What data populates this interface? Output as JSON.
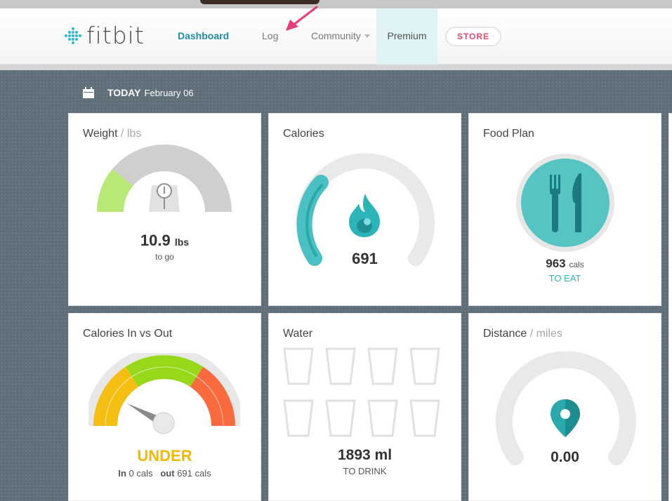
{
  "header": {
    "logo_text": "fitbit",
    "nav": {
      "dashboard": "Dashboard",
      "log": "Log",
      "community": "Community",
      "premium": "Premium",
      "store": "STORE"
    }
  },
  "date_bar": {
    "today_label": "TODAY",
    "date": "February 06"
  },
  "tiles": {
    "weight": {
      "title": "Weight",
      "unit": "/ lbs",
      "value": "10.9",
      "value_unit": "lbs",
      "caption": "to go",
      "progress_fraction": 0.22
    },
    "calories": {
      "title": "Calories",
      "value": "691",
      "progress_fraction": 0.3
    },
    "food_plan": {
      "title": "Food Plan",
      "value": "963",
      "value_unit": "cals",
      "caption": "TO EAT"
    },
    "calories_in_out": {
      "title": "Calories In vs Out",
      "status": "UNDER",
      "in_label": "In",
      "in_value": "0 cals",
      "out_label": "out",
      "out_value": "691 cals"
    },
    "water": {
      "title": "Water",
      "value": "1893 ml",
      "caption": "TO DRINK",
      "glasses_total": 8,
      "glasses_filled": 0
    },
    "distance": {
      "title": "Distance",
      "unit": "/ miles",
      "value": "0.00",
      "progress_fraction": 0
    }
  },
  "colors": {
    "brand_teal": "#2bb5b9",
    "accent_pink": "#e8456f",
    "gauge_gray": "#d0d0d0",
    "weight_green": "#b9e876",
    "under_yellow": "#f5b800"
  }
}
